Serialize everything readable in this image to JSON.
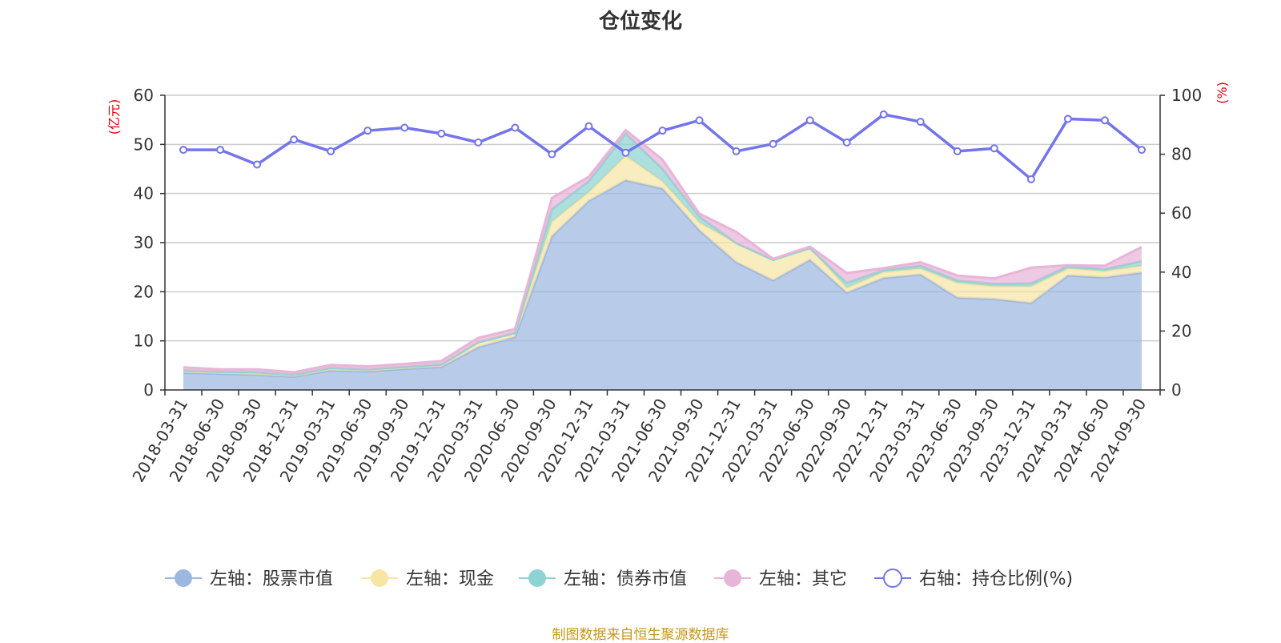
{
  "title": "仓位变化",
  "source": "制图数据来自恒生聚源数据库",
  "colors": {
    "stock": "#9db7e0",
    "cash": "#f7e5a5",
    "bond": "#8ed3d3",
    "other": "#e8b4d8",
    "ratio": "#7474ec"
  },
  "chart_data": {
    "type": "area",
    "title": "仓位变化",
    "categories": [
      "2018-03-31",
      "2018-06-30",
      "2018-09-30",
      "2018-12-31",
      "2019-03-31",
      "2019-06-30",
      "2019-09-30",
      "2019-12-31",
      "2020-03-31",
      "2020-06-30",
      "2020-09-30",
      "2020-12-31",
      "2021-03-31",
      "2021-06-30",
      "2021-09-30",
      "2021-12-31",
      "2022-03-31",
      "2022-06-30",
      "2022-09-30",
      "2022-12-31",
      "2023-03-31",
      "2023-06-30",
      "2023-09-30",
      "2023-12-31",
      "2024-03-31",
      "2024-06-30",
      "2024-09-30"
    ],
    "left_axis": {
      "unit": "(亿元)",
      "ylim": [
        0,
        60
      ],
      "ticks": [
        0,
        10,
        20,
        30,
        40,
        50,
        60
      ]
    },
    "right_axis": {
      "unit": "(%)",
      "ylim": [
        0,
        100
      ],
      "ticks": [
        0,
        20,
        40,
        60,
        80,
        100
      ]
    },
    "grid": true,
    "legend_position": "bottom",
    "series": [
      {
        "key": "stock",
        "name": "左轴：股票市值",
        "axis": "left",
        "stacked": true,
        "values": [
          3.5,
          3.3,
          3.1,
          2.7,
          4.0,
          3.8,
          4.3,
          4.7,
          8.7,
          10.8,
          31.3,
          38.5,
          42.7,
          41.0,
          32.5,
          26.0,
          22.3,
          26.5,
          19.8,
          22.8,
          23.5,
          18.8,
          18.5,
          17.7,
          23.3,
          22.9,
          23.9
        ]
      },
      {
        "key": "cash",
        "name": "左轴：现金",
        "axis": "left",
        "stacked": true,
        "values": [
          0.5,
          0.4,
          0.5,
          0.4,
          0.5,
          0.4,
          0.4,
          0.5,
          1.0,
          0.8,
          3.0,
          1.8,
          5.0,
          1.5,
          1.6,
          3.9,
          4.2,
          2.4,
          1.0,
          1.2,
          1.2,
          3.0,
          2.6,
          3.4,
          1.4,
          1.3,
          1.4
        ]
      },
      {
        "key": "bond",
        "name": "左轴：债券市值",
        "axis": "left",
        "stacked": true,
        "values": [
          0.0,
          0.0,
          0.0,
          0.0,
          0.0,
          0.0,
          0.0,
          0.0,
          0.0,
          0.0,
          2.5,
          2.2,
          4.5,
          2.5,
          1.2,
          0.0,
          0.0,
          0.0,
          1.0,
          0.4,
          0.6,
          0.5,
          0.5,
          0.6,
          0.5,
          0.4,
          0.9
        ]
      },
      {
        "key": "other",
        "name": "左轴：其它",
        "axis": "left",
        "stacked": true,
        "values": [
          0.6,
          0.5,
          0.6,
          0.5,
          0.6,
          0.6,
          0.6,
          0.7,
          0.9,
          0.8,
          2.3,
          0.9,
          0.7,
          1.9,
          0.6,
          2.3,
          0.2,
          0.3,
          2.0,
          0.4,
          0.7,
          1.0,
          1.1,
          3.2,
          0.2,
          0.7,
          2.9
        ]
      },
      {
        "key": "ratio",
        "name": "右轴：持仓比例(%)",
        "axis": "right",
        "stacked": false,
        "values": [
          81.5,
          81.5,
          76.5,
          85.0,
          81.0,
          88.0,
          89.0,
          87.0,
          84.0,
          89.0,
          80.0,
          89.5,
          80.5,
          88.0,
          91.5,
          81.0,
          83.5,
          91.5,
          84.0,
          93.5,
          91.0,
          81.0,
          82.0,
          71.5,
          92.0,
          91.5,
          81.5
        ]
      }
    ]
  }
}
